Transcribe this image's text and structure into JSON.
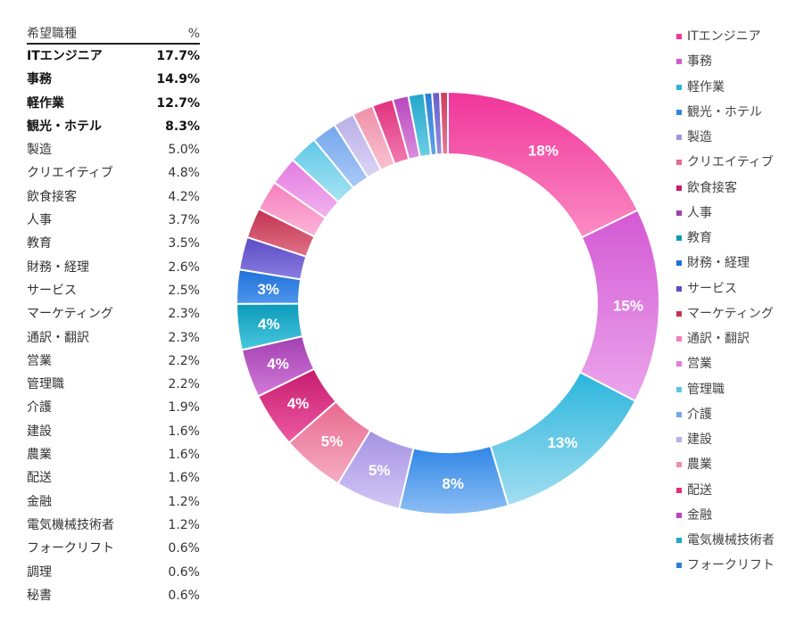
{
  "table": {
    "header": {
      "category": "希望職種",
      "percent": "%"
    },
    "rows": [
      {
        "name": "ITエンジニア",
        "value": "17.7%",
        "bold": true
      },
      {
        "name": "事務",
        "value": "14.9%",
        "bold": true
      },
      {
        "name": "軽作業",
        "value": "12.7%",
        "bold": true
      },
      {
        "name": "観光・ホテル",
        "value": "8.3%",
        "bold": true
      },
      {
        "name": "製造",
        "value": "5.0%"
      },
      {
        "name": "クリエイティブ",
        "value": "4.8%"
      },
      {
        "name": "飲食接客",
        "value": "4.2%"
      },
      {
        "name": "人事",
        "value": "3.7%"
      },
      {
        "name": "教育",
        "value": "3.5%"
      },
      {
        "name": "財務・経理",
        "value": "2.6%"
      },
      {
        "name": "サービス",
        "value": "2.5%"
      },
      {
        "name": "マーケティング",
        "value": "2.3%"
      },
      {
        "name": "通訳・翻訳",
        "value": "2.3%"
      },
      {
        "name": "営業",
        "value": "2.2%"
      },
      {
        "name": "管理職",
        "value": "2.2%"
      },
      {
        "name": "介護",
        "value": "1.9%"
      },
      {
        "name": "建設",
        "value": "1.6%"
      },
      {
        "name": "農業",
        "value": "1.6%"
      },
      {
        "name": "配送",
        "value": "1.6%"
      },
      {
        "name": "金融",
        "value": "1.2%"
      },
      {
        "name": "電気機械技術者",
        "value": "1.2%"
      },
      {
        "name": "フォークリフト",
        "value": "0.6%"
      },
      {
        "name": "調理",
        "value": "0.6%"
      },
      {
        "name": "秘書",
        "value": "0.6%"
      }
    ]
  },
  "chart_data": {
    "type": "pie",
    "style": "donut",
    "title": "",
    "labels": [
      "ITエンジニア",
      "事務",
      "軽作業",
      "観光・ホテル",
      "製造",
      "クリエイティブ",
      "飲食接客",
      "人事",
      "教育",
      "財務・経理",
      "サービス",
      "マーケティング",
      "通訳・翻訳",
      "営業",
      "管理職",
      "介護",
      "建設",
      "農業",
      "配送",
      "金融",
      "電気機械技術者",
      "フォークリフト",
      "調理",
      "秘書"
    ],
    "values": [
      17.7,
      14.9,
      12.7,
      8.3,
      5.0,
      4.8,
      4.2,
      3.7,
      3.5,
      2.6,
      2.5,
      2.3,
      2.3,
      2.2,
      2.2,
      1.9,
      1.6,
      1.6,
      1.6,
      1.2,
      1.2,
      0.6,
      0.6,
      0.6
    ],
    "data_labels": [
      "18%",
      "15%",
      "13%",
      "8%",
      "5%",
      "5%",
      "4%",
      "4%",
      "4%",
      "3%",
      "",
      "",
      "",
      "",
      "",
      "",
      "",
      "",
      "",
      "",
      "",
      "",
      "",
      ""
    ],
    "colors": [
      [
        "#f0359a",
        "#fb8cc4"
      ],
      [
        "#d458d4",
        "#eba6ec"
      ],
      [
        "#2bb5dc",
        "#a3def1"
      ],
      [
        "#2f86e6",
        "#8dbef4"
      ],
      [
        "#a592e4",
        "#d2c6f4"
      ],
      [
        "#e8698e",
        "#f5aec3"
      ],
      [
        "#c81b6e",
        "#ec5aa2"
      ],
      [
        "#a23fb1",
        "#d27ad9"
      ],
      [
        "#0b9ab9",
        "#4ac8e0"
      ],
      [
        "#1f6fd8",
        "#4e97ec"
      ],
      [
        "#5b4bc5",
        "#8a7de0"
      ],
      [
        "#c2324f",
        "#e07287"
      ],
      [
        "#f77fbc",
        "#fbb5d9"
      ],
      [
        "#e47ae0",
        "#f1b3ef"
      ],
      [
        "#5ec8e6",
        "#a9e3f3"
      ],
      [
        "#74a6ec",
        "#aac9f5"
      ],
      [
        "#b8aee6",
        "#dcd5f6"
      ],
      [
        "#ef8fa7",
        "#f8c2d0"
      ],
      [
        "#e0307c",
        "#f07bb0"
      ],
      [
        "#b845bd",
        "#d98ddd"
      ],
      [
        "#22a6c9",
        "#6dcfe6"
      ],
      [
        "#2a7fd5",
        "#5da3e8"
      ],
      [
        "#6a5cc9",
        "#978ce0"
      ],
      [
        "#cf3a5c",
        "#e77c95"
      ]
    ],
    "legend": {
      "position": "right",
      "entries": [
        "ITエンジニア",
        "事務",
        "軽作業",
        "観光・ホテル",
        "製造",
        "クリエイティブ",
        "飲食接客",
        "人事",
        "教育",
        "財務・経理",
        "サービス",
        "マーケティング",
        "通訳・翻訳",
        "営業",
        "管理職",
        "介護",
        "建設",
        "農業",
        "配送",
        "金融",
        "電気機械技術者",
        "フォークリフト"
      ],
      "swatch_colors": [
        "#f0359a",
        "#d458d4",
        "#2bb5dc",
        "#2f86e6",
        "#a592e4",
        "#e8698e",
        "#c81b6e",
        "#a23fb1",
        "#0b9ab9",
        "#1f6fd8",
        "#5b4bc5",
        "#c2324f",
        "#f77fbc",
        "#e47ae0",
        "#5ec8e6",
        "#74a6ec",
        "#b8aee6",
        "#ef8fa7",
        "#e0307c",
        "#b845bd",
        "#22a6c9",
        "#2a7fd5"
      ]
    }
  }
}
